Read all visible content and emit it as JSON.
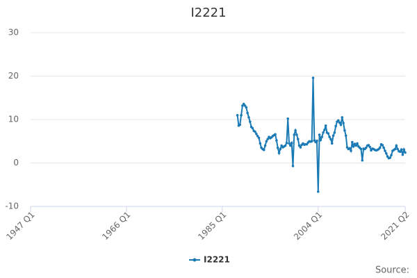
{
  "chart_data": {
    "type": "line",
    "title": "I2221",
    "source": "Source:",
    "x": [
      1988,
      1988.25,
      1988.5,
      1988.75,
      1989,
      1989.25,
      1989.5,
      1989.75,
      1990,
      1990.25,
      1990.5,
      1990.75,
      1991,
      1991.25,
      1991.5,
      1991.75,
      1992,
      1992.25,
      1992.5,
      1992.75,
      1993,
      1993.25,
      1993.5,
      1993.75,
      1994,
      1994.25,
      1994.5,
      1994.75,
      1995,
      1995.25,
      1995.5,
      1995.75,
      1996,
      1996.25,
      1996.5,
      1996.75,
      1997,
      1997.25,
      1997.5,
      1997.75,
      1998,
      1998.25,
      1998.5,
      1998.75,
      1999,
      1999.25,
      1999.5,
      1999.75,
      2000,
      2000.25,
      2000.5,
      2000.75,
      2001,
      2001.25,
      2001.5,
      2001.75,
      2002,
      2002.25,
      2002.5,
      2002.75,
      2003,
      2003.25,
      2003.5,
      2003.75,
      2004,
      2004.25,
      2004.5,
      2004.75,
      2005,
      2005.25,
      2005.5,
      2005.75,
      2006,
      2006.25,
      2006.5,
      2006.75,
      2007,
      2007.25,
      2007.5,
      2007.75,
      2008,
      2008.25,
      2008.5,
      2008.75,
      2009,
      2009.25,
      2009.5,
      2009.75,
      2010,
      2010.25,
      2010.5,
      2010.75,
      2011,
      2011.25,
      2011.5,
      2011.75,
      2012,
      2012.25,
      2012.5,
      2012.75,
      2013,
      2013.25,
      2013.5,
      2013.75,
      2014,
      2014.25,
      2014.5,
      2014.75,
      2015,
      2015.25,
      2015.5,
      2015.75,
      2016,
      2016.25,
      2016.5,
      2016.75,
      2017,
      2017.25,
      2017.5,
      2017.75,
      2018,
      2018.25,
      2018.5,
      2018.75,
      2019,
      2019.25,
      2019.5,
      2019.75,
      2020,
      2020.25,
      2020.5,
      2020.75,
      2021,
      2021.25
    ],
    "series": [
      {
        "name": "I2221",
        "color": "#1a7ab5",
        "values": [
          11,
          8.6,
          8.8,
          11,
          13.2,
          13.6,
          13.2,
          12.8,
          11.5,
          10.5,
          9.5,
          8.3,
          8,
          7.4,
          7.2,
          6.7,
          6.2,
          5.8,
          4.5,
          3.5,
          3.2,
          3,
          4,
          5,
          5.5,
          6,
          5.7,
          5.9,
          6.2,
          6.4,
          6.6,
          5.2,
          3.5,
          2.3,
          3.2,
          4,
          3.6,
          3.8,
          4,
          4.6,
          10.2,
          4.5,
          4,
          4.6,
          -0.7,
          6.5,
          7.5,
          6.5,
          5.5,
          4,
          3.6,
          4.2,
          4.5,
          4.2,
          4.3,
          4.3,
          4.7,
          5,
          4.9,
          5,
          19.6,
          5.2,
          4.8,
          5.1,
          -6.6,
          6.5,
          5.3,
          6,
          7,
          7.6,
          8.6,
          7,
          6.8,
          6,
          5.5,
          4.5,
          6.3,
          7,
          8.5,
          9.5,
          9.8,
          9.3,
          8.8,
          10.5,
          9.2,
          7.5,
          6.3,
          3.6,
          3.2,
          3.4,
          2.8,
          4.8,
          3.8,
          4.4,
          4,
          4.5,
          3.8,
          3.5,
          3.2,
          0.6,
          3.3,
          3.2,
          3.5,
          4,
          4.1,
          3.7,
          2.9,
          3.3,
          3.2,
          3,
          2.9,
          3,
          3.2,
          3.5,
          4.3,
          4.1,
          3.5,
          2.8,
          2.2,
          1.5,
          1.1,
          1.2,
          1.8,
          2.8,
          3,
          3.2,
          4,
          3.2,
          2.7,
          2.6,
          3.1,
          1.9,
          3.1,
          2.4
        ]
      }
    ],
    "xlim": [
      1947,
      2021.25
    ],
    "xticks": [
      {
        "value": 1947,
        "label": "1947 Q1"
      },
      {
        "value": 1966,
        "label": "1966 Q1"
      },
      {
        "value": 1985,
        "label": "1985 Q1"
      },
      {
        "value": 2004,
        "label": "2004 Q1"
      },
      {
        "value": 2021.25,
        "label": "2021 Q2"
      }
    ],
    "ylim": [
      -10,
      30
    ],
    "yticks": [
      -10,
      0,
      10,
      20,
      30
    ],
    "grid": true
  }
}
